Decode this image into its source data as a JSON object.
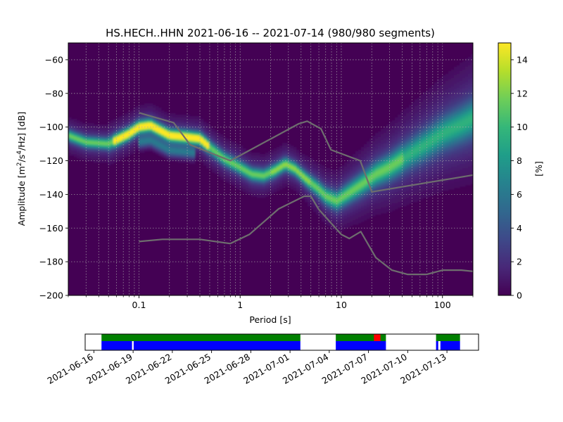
{
  "chart_data": [
    {
      "type": "heatmap",
      "title": "HS.HECH..HHN   2021-06-16 -- 2021-07-14  (980/980 segments)",
      "xlabel": "Period [s]",
      "ylabel_parts": [
        "Amplitude [m",
        "2",
        "/s",
        "4",
        "/Hz] [dB]"
      ],
      "x_scale": "log",
      "xlim": [
        0.02,
        200
      ],
      "ylim": [
        -200,
        -50
      ],
      "x_ticks": [
        0.1,
        1,
        10,
        100
      ],
      "x_tick_labels": [
        "0.1",
        "1",
        "10",
        "100"
      ],
      "y_ticks": [
        -200,
        -180,
        -160,
        -140,
        -120,
        -100,
        -80,
        -60
      ],
      "y_tick_labels": [
        "−200",
        "−180",
        "−160",
        "−140",
        "−120",
        "−100",
        "−80",
        "−60"
      ],
      "grid": true,
      "colorbar": {
        "label": "[%]",
        "range": [
          0,
          15
        ],
        "ticks": [
          0,
          2,
          4,
          6,
          8,
          10,
          12,
          14
        ],
        "tick_labels": [
          "0",
          "2",
          "4",
          "6",
          "8",
          "10",
          "12",
          "14"
        ],
        "colormap": [
          "#440154",
          "#482878",
          "#3e4989",
          "#31688e",
          "#26828e",
          "#1f9e89",
          "#35b779",
          "#6ece58",
          "#b5de2b",
          "#fde725"
        ]
      },
      "mode_curve": {
        "x": [
          0.02,
          0.03,
          0.05,
          0.08,
          0.1,
          0.13,
          0.2,
          0.3,
          0.4,
          0.5,
          0.7,
          1,
          1.3,
          1.7,
          2.2,
          2.8,
          3.5,
          4.5,
          6,
          7,
          9,
          12,
          16,
          22,
          30,
          45,
          70,
          100,
          150,
          200
        ],
        "y": [
          -105,
          -109,
          -110,
          -104,
          -100,
          -99,
          -105,
          -106,
          -107,
          -112,
          -119,
          -124,
          -128,
          -129,
          -126,
          -122,
          -125,
          -131,
          -137,
          -141,
          -144,
          -139,
          -134,
          -128,
          -124,
          -117,
          -110,
          -104,
          -99,
          -95
        ]
      },
      "reference_curves": [
        {
          "x": [
            0.1,
            0.17,
            0.4,
            0.8,
            1.24,
            2.4,
            4.3,
            5.0,
            6.0,
            10,
            12,
            15.6,
            21.9,
            31.6,
            45,
            70,
            101,
            154,
            200
          ],
          "y": [
            -168,
            -166.7,
            -166.7,
            -169.2,
            -163.7,
            -148.6,
            -141.1,
            -141.1,
            -149.0,
            -163.8,
            -166.2,
            -162.1,
            -177.5,
            -185.0,
            -187.5,
            -187.5,
            -185.0,
            -185.0,
            -185.7
          ]
        },
        {
          "x": [
            0.1,
            0.22,
            0.32,
            0.8,
            3.8,
            4.6,
            6.3,
            7.9,
            15.4,
            20,
            200
          ],
          "y": [
            -91.5,
            -97.4,
            -110.5,
            -120.0,
            -98.0,
            -96.5,
            -101.0,
            -113.5,
            -120.0,
            -138.5,
            -128.5
          ]
        }
      ]
    },
    {
      "type": "timeline",
      "x_ticks": [
        "2021-06-16",
        "2021-06-19",
        "2021-06-22",
        "2021-06-25",
        "2021-06-28",
        "2021-07-01",
        "2021-07-04",
        "2021-07-07",
        "2021-07-10",
        "2021-07-13"
      ],
      "xlim": [
        "2021-06-15T08:00",
        "2021-07-15T10:00"
      ],
      "data_segments": [
        {
          "start": "2021-06-16T14:00",
          "end": "2021-07-01T19:00"
        },
        {
          "start": "2021-07-04T12:00",
          "end": "2021-07-08T08:00"
        },
        {
          "start": "2021-07-12T04:00",
          "end": "2021-07-14T00:00"
        }
      ],
      "psd_segments": [
        {
          "start": "2021-06-16T14:00",
          "end": "2021-06-18T22:00"
        },
        {
          "start": "2021-06-19T01:00",
          "end": "2021-07-01T19:00"
        },
        {
          "start": "2021-07-04T12:00",
          "end": "2021-07-08T08:00"
        },
        {
          "start": "2021-07-12T04:00",
          "end": "2021-07-12T08:00"
        },
        {
          "start": "2021-07-12T12:00",
          "end": "2021-07-14T00:00"
        }
      ],
      "highlight_segments": [
        {
          "start": "2021-07-07T10:00",
          "end": "2021-07-07T22:00"
        }
      ],
      "colors": {
        "data": "#008000",
        "psd": "#0000ff",
        "highlight": "#ff0000"
      }
    }
  ]
}
